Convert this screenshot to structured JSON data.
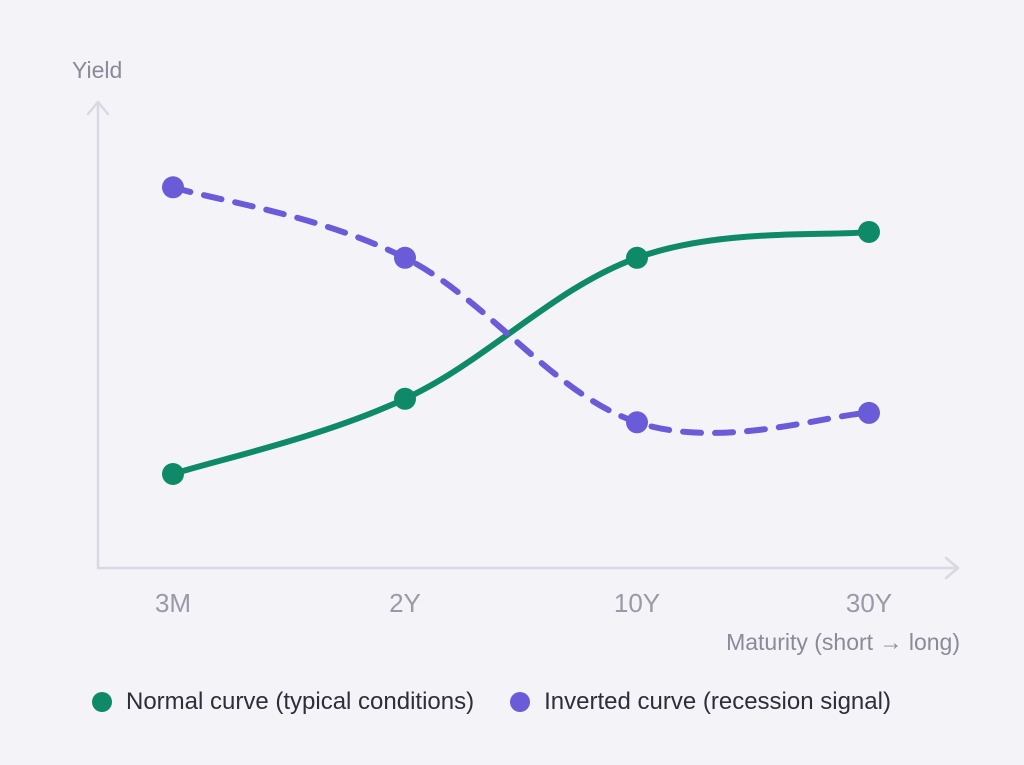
{
  "chart_data": {
    "type": "line",
    "xlabel": "Maturity (short → long)",
    "ylabel": "Yield",
    "categories": [
      "3M",
      "2Y",
      "10Y",
      "30Y"
    ],
    "ylim": [
      0,
      10
    ],
    "grid": false,
    "legend_position": "bottom-left",
    "series": [
      {
        "name": "Normal curve (typical conditions)",
        "values": [
          2.0,
          3.6,
          6.6,
          7.15
        ],
        "color": "#0f8a68",
        "style": "solid"
      },
      {
        "name": "Inverted curve (recession signal)",
        "values": [
          8.1,
          6.6,
          3.1,
          3.3
        ],
        "color": "#6a5cd8",
        "style": "dashed"
      }
    ]
  }
}
